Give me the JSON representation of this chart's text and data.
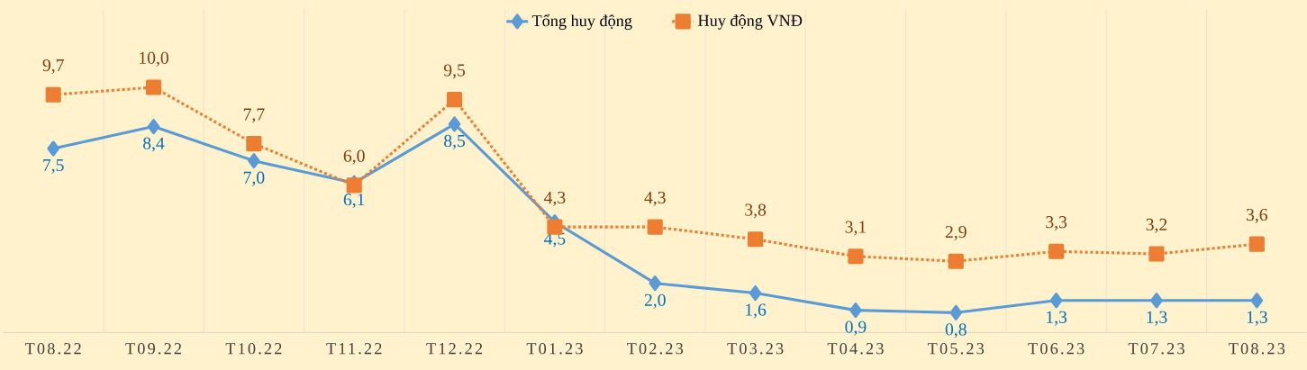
{
  "chart_data": {
    "type": "line",
    "categories": [
      "T08.22",
      "T09.22",
      "T10.22",
      "T11.22",
      "T12.22",
      "T01.23",
      "T02.23",
      "T03.23",
      "T04.23",
      "T05.23",
      "T06.23",
      "T07.23",
      "T08.23"
    ],
    "series": [
      {
        "name": "Tổng huy động",
        "color": "#5b9bd5",
        "marker": "diamond",
        "line_style": "solid",
        "values": [
          7.5,
          8.4,
          7.0,
          6.1,
          8.5,
          4.5,
          2.0,
          1.6,
          0.9,
          0.8,
          1.3,
          1.3,
          1.3
        ],
        "value_labels": [
          "7,5",
          "8,4",
          "7,0",
          "6,1",
          "8,5",
          "4,5",
          "2,0",
          "1,6",
          "0,9",
          "0,8",
          "1,3",
          "1,3",
          "1,3"
        ]
      },
      {
        "name": "Huy động VNĐ",
        "color": "#ed7d31",
        "marker": "square",
        "line_style": "dotted",
        "values": [
          9.7,
          10.0,
          7.7,
          6.0,
          9.5,
          4.3,
          4.3,
          3.8,
          3.1,
          2.9,
          3.3,
          3.2,
          3.6
        ],
        "value_labels": [
          "9,7",
          "10,0",
          "7,7",
          "6,0",
          "9,5",
          "4,3",
          "4,3",
          "3,8",
          "3,1",
          "2,9",
          "3,3",
          "3,2",
          "3,6"
        ]
      }
    ],
    "grid": "x",
    "legend": "top"
  }
}
